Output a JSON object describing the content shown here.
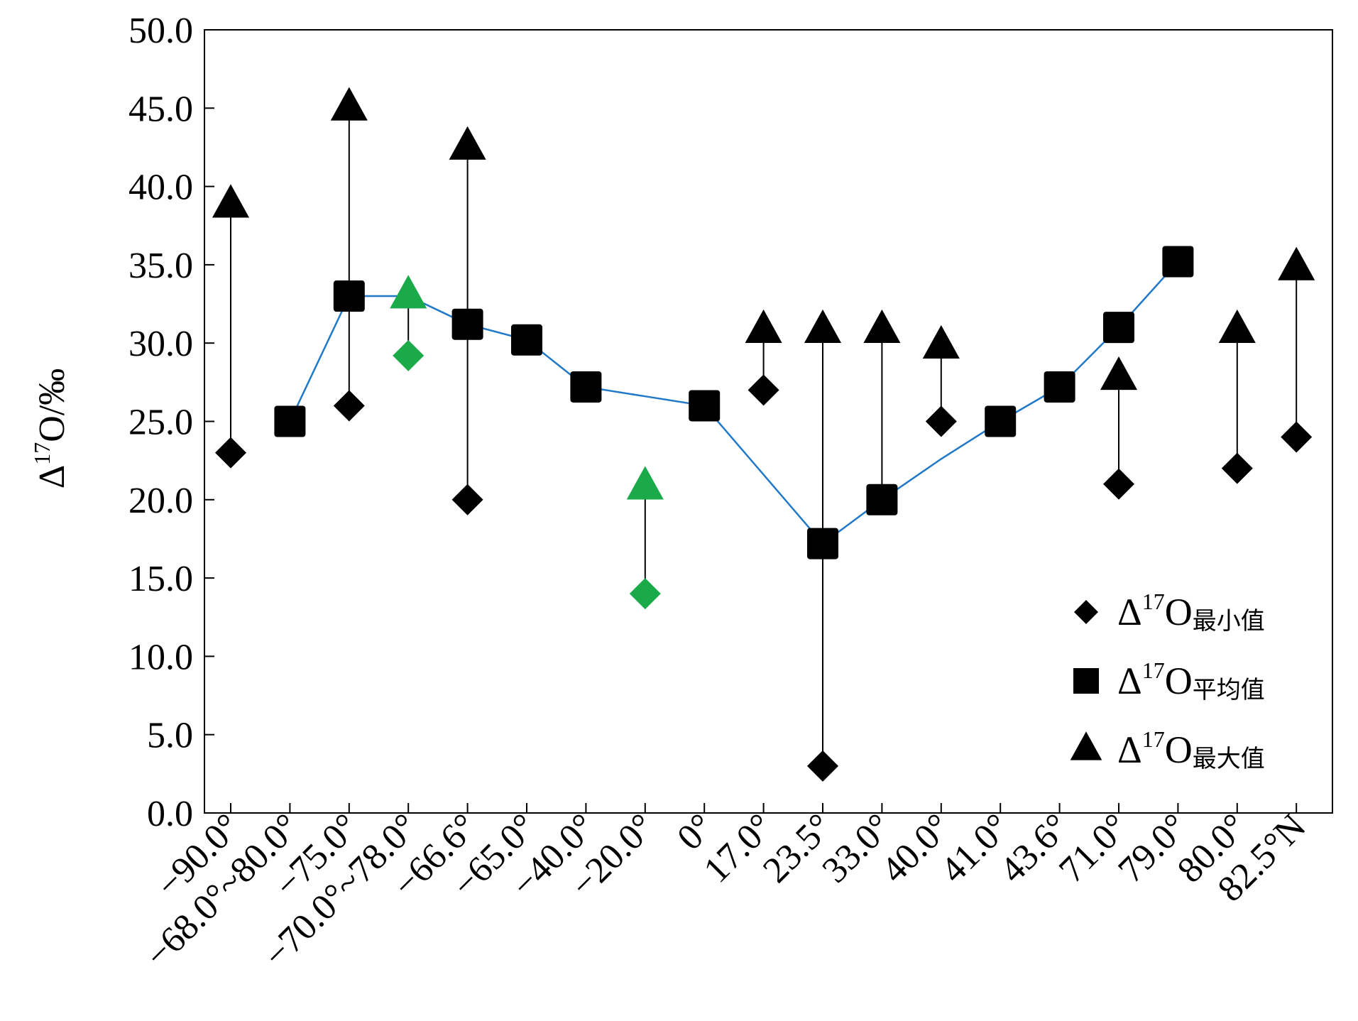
{
  "chart_data": {
    "type": "scatter",
    "title": "",
    "xlabel": "",
    "ylabel": "Δ17O/‰",
    "ylabel_parts": {
      "delta": "Δ",
      "sup": "17",
      "rest": "O/‰"
    },
    "ylim": [
      0,
      50
    ],
    "yticks": [
      "0.0",
      "5.0",
      "10.0",
      "15.0",
      "20.0",
      "25.0",
      "30.0",
      "35.0",
      "40.0",
      "45.0",
      "50.0"
    ],
    "categories": [
      "−90.0°",
      "−68.0°~80.0°",
      "−75.0°",
      "−70.0°~78.0°",
      "−66.6°",
      "−65.0°",
      "−40.0°",
      "−20.0°",
      "0°",
      "17.0°",
      "23.5°",
      "33.0°",
      "40.0°",
      "41.0°",
      "43.6°",
      "71.0°",
      "79.0°",
      "80.0°",
      "82.5°N"
    ],
    "series": [
      {
        "name": "Δ17O最小值",
        "marker": "diamond",
        "values": [
          23,
          null,
          26,
          29.2,
          20,
          null,
          null,
          14,
          null,
          27,
          3,
          20,
          25,
          null,
          null,
          21,
          null,
          22,
          24
        ]
      },
      {
        "name": "Δ17O平均值",
        "marker": "square",
        "values": [
          null,
          25,
          33,
          33,
          31.2,
          30.2,
          27.2,
          26.6,
          26,
          null,
          17.2,
          20,
          22.6,
          25,
          27.2,
          31,
          35.2,
          null,
          null
        ]
      },
      {
        "name": "Δ17O最大值",
        "marker": "triangle",
        "values": [
          38.8,
          null,
          45,
          33,
          42.5,
          null,
          null,
          20.8,
          null,
          30.8,
          30.8,
          30.8,
          29.8,
          null,
          null,
          27.8,
          null,
          30.8,
          34.8
        ]
      }
    ],
    "mean_line_points": [
      1,
      2,
      3,
      4,
      5,
      6,
      7,
      8,
      10,
      11,
      12,
      13,
      14,
      15,
      16
    ],
    "hidden_mean_points": [
      3,
      7,
      12
    ],
    "highlight_categories": [
      3,
      7
    ],
    "legend": {
      "position": "lower-right",
      "items": [
        {
          "symbol": "diamond",
          "delta": "Δ",
          "sup": "17",
          "main": "O",
          "sub": "最小值"
        },
        {
          "symbol": "square",
          "delta": "Δ",
          "sup": "17",
          "main": "O",
          "sub": "平均值"
        },
        {
          "symbol": "triangle",
          "delta": "Δ",
          "sup": "17",
          "main": "O",
          "sub": "最大值"
        }
      ]
    },
    "grid": false,
    "colors": {
      "marker": "#000000",
      "highlight": "#1aaa4a",
      "line": "#1f78c8",
      "axis": "#000000"
    }
  }
}
